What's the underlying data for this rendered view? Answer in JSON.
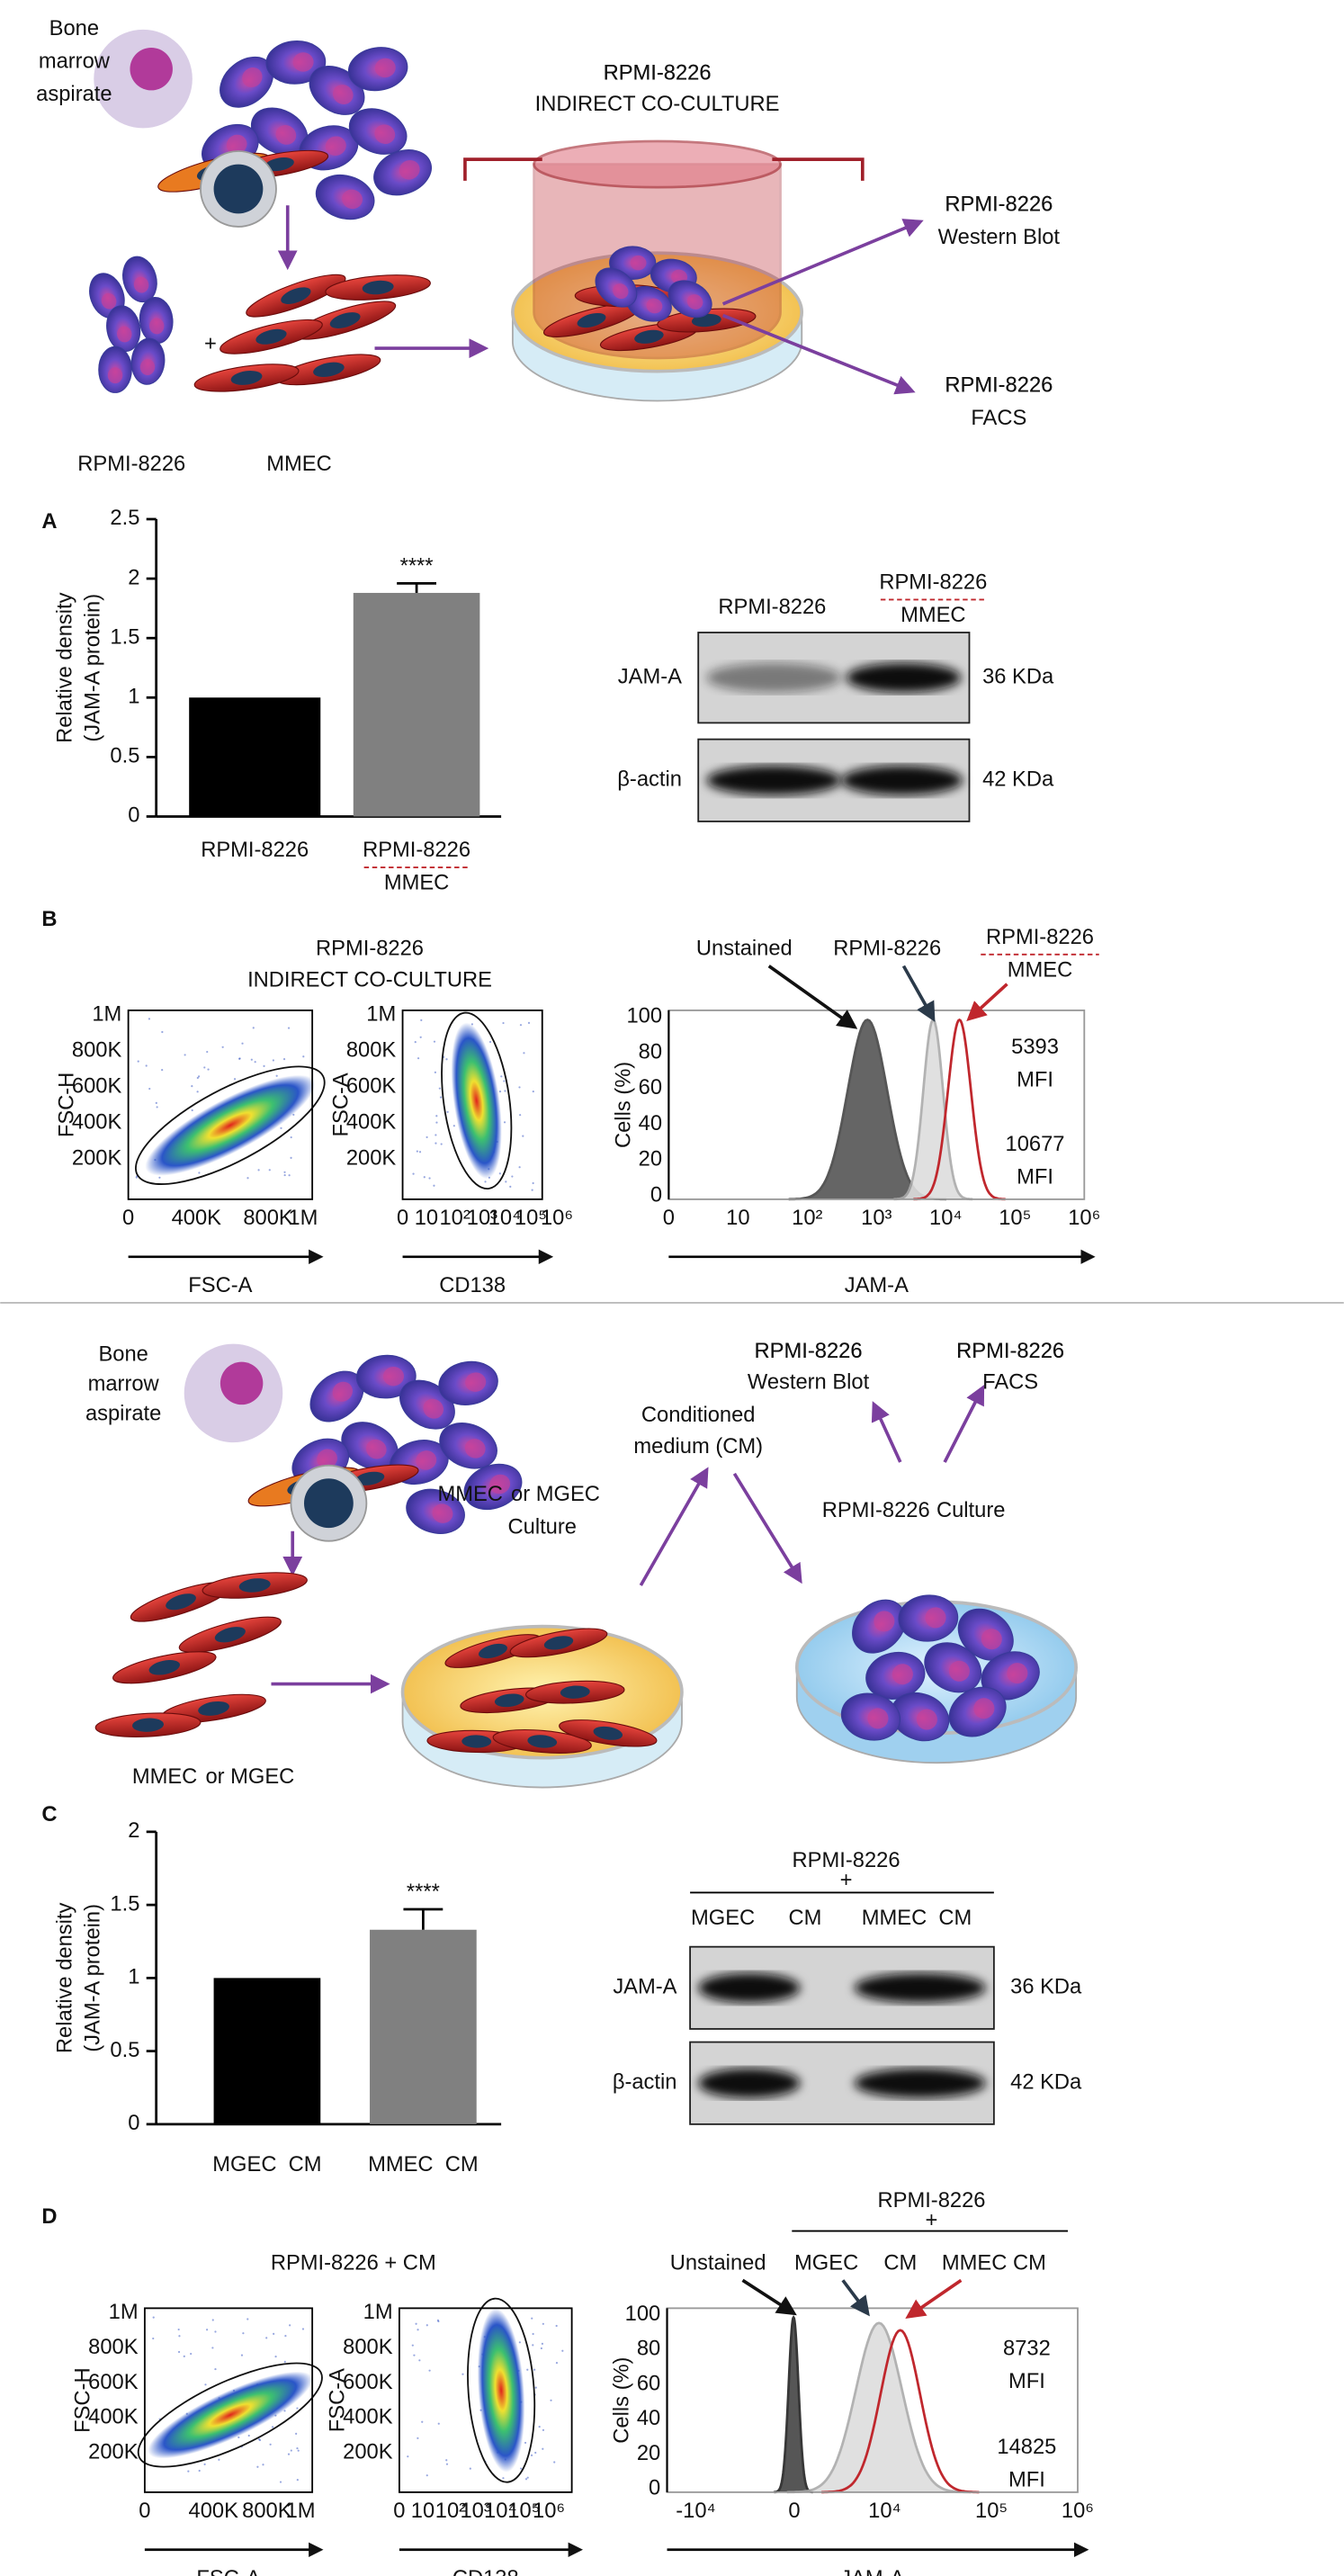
{
  "top": {
    "aspirate": [
      "Bone",
      "marrow",
      "aspirate"
    ],
    "cell_line": "RPMI-8226",
    "endothelial": "MMEC",
    "plus": "+",
    "coculture": [
      "RPMI-8226",
      "INDIRECT CO-CULTURE"
    ],
    "western": [
      "RPMI-8226",
      "Western Blot"
    ],
    "facs": [
      "RPMI-8226",
      "FACS"
    ]
  },
  "bottom": {
    "aspirate": [
      "Bone",
      "marrow",
      "aspirate"
    ],
    "western": [
      "RPMI-8226",
      "Western Blot"
    ],
    "facs": [
      "RPMI-8226",
      "FACS"
    ],
    "cm": [
      "Conditioned",
      "medium (CM)"
    ],
    "culture1": {
      "red": "MMEC",
      "rest": "or MGEC",
      "line2": "Culture"
    },
    "culture2": {
      "cell": "RPMI-8226",
      "rest": "Culture"
    },
    "source": {
      "red": "MMEC",
      "rest": "or MGEC"
    }
  },
  "chart_data": [
    {
      "type": "bar",
      "panel": "A",
      "ylabel": [
        "Relative density",
        "(JAM-A protein)"
      ],
      "categories": [
        [
          "RPMI-8226"
        ],
        [
          "RPMI-8226",
          "MMEC"
        ]
      ],
      "category_colors": [
        "#666666",
        "#c0272d"
      ],
      "values": [
        1,
        1.88
      ],
      "errors": [
        null,
        0.08
      ],
      "colors": [
        "#000000",
        "#808080"
      ],
      "ylim": [
        0,
        2.5
      ],
      "yticks": [
        0,
        0.5,
        1,
        1.5,
        2,
        2.5
      ],
      "annotation": "****"
    },
    {
      "type": "bar",
      "panel": "C",
      "ylabel": [
        "Relative density",
        "(JAM-A protein)"
      ],
      "categories": [
        [
          "MGEC  CM"
        ],
        [
          "MMEC  CM"
        ]
      ],
      "category_colors": [
        "#000000",
        "#c0272d"
      ],
      "values": [
        1,
        1.33
      ],
      "errors": [
        null,
        0.14
      ],
      "colors": [
        "#000000",
        "#808080"
      ],
      "ylim": [
        0,
        2
      ],
      "yticks": [
        0,
        0.5,
        1,
        1.5,
        2
      ],
      "annotation": "****"
    }
  ],
  "blots": [
    {
      "columns": [
        [
          "RPMI-8226"
        ],
        [
          "RPMI-8226",
          "MMEC"
        ]
      ],
      "column_colors": [
        "#666666",
        "#c0272d"
      ],
      "rows": [
        "JAM-A",
        "β-actin"
      ],
      "sizes": [
        "36 KDa",
        "42 KDa"
      ]
    },
    {
      "header": [
        "RPMI-8226",
        "+"
      ],
      "columns": [
        [
          "MGEC"
        ],
        [
          "CM"
        ],
        [
          "MMEC  CM"
        ]
      ],
      "column_colors": [
        "#000000",
        "#000000",
        "#c0272d"
      ],
      "rows": [
        "JAM-A",
        "β-actin"
      ],
      "sizes": [
        "36 KDa",
        "42 KDa"
      ]
    }
  ],
  "flow": [
    {
      "panel": "B",
      "title": [
        "RPMI-8226",
        "INDIRECT CO-CULTURE"
      ],
      "plots": [
        {
          "xlabel": "FSC-A",
          "ylabel": "FSC-H",
          "xticks": [
            "0",
            "400K",
            "800K",
            "1M"
          ],
          "yticks": [
            "1M",
            "800K",
            "600K",
            "400K",
            "200K"
          ]
        },
        {
          "xlabel": "CD138",
          "ylabel": "FSC-A",
          "xticks": [
            "0",
            "10",
            "10²",
            "10³",
            "10⁴",
            "10⁵",
            "10⁶"
          ],
          "yticks": [
            "1M",
            "800K",
            "600K",
            "400K",
            "200K"
          ]
        }
      ],
      "histogram": {
        "xlabel": "JAM-A",
        "ylabel": "Cells (%)",
        "xticks": [
          "0",
          "10",
          "10²",
          "10³",
          "10⁴",
          "10⁵",
          "10⁶"
        ],
        "yticks": [
          "100",
          "80",
          "60",
          "40",
          "20",
          "0"
        ],
        "unstained": "Unstained",
        "control": [
          "RPMI-8226"
        ],
        "treated": [
          "RPMI-8226",
          "MMEC"
        ],
        "control_mfi": [
          "5393",
          "MFI"
        ],
        "treated_mfi": [
          "10677",
          "MFI"
        ]
      }
    },
    {
      "panel": "D",
      "header": [
        "RPMI-8226",
        "+"
      ],
      "title": [
        "RPMI-8226 + CM"
      ],
      "plots": [
        {
          "xlabel": "FSC-A",
          "ylabel": "FSC-H",
          "xticks": [
            "0",
            "400K",
            "800K",
            "1M"
          ],
          "yticks": [
            "1M",
            "800K",
            "600K",
            "400K",
            "200K"
          ]
        },
        {
          "xlabel": "CD138",
          "ylabel": "FSC-A",
          "xticks": [
            "0",
            "10",
            "10²",
            "10³",
            "10⁴",
            "10⁵",
            "10⁶"
          ],
          "yticks": [
            "1M",
            "800K",
            "600K",
            "400K",
            "200K"
          ]
        }
      ],
      "histogram": {
        "xlabel": "JAM-A",
        "ylabel": "Cells (%)",
        "xticks": [
          "-10⁴",
          "0",
          "10⁴",
          "10⁵",
          "10⁶"
        ],
        "yticks": [
          "100",
          "80",
          "60",
          "40",
          "20",
          "0"
        ],
        "unstained": "Unstained",
        "control": [
          "MGEC",
          "CM"
        ],
        "treated": [
          "MMEC CM"
        ],
        "control_mfi": [
          "8732",
          "MFI"
        ],
        "treated_mfi": [
          "14825",
          "MFI"
        ]
      }
    }
  ]
}
